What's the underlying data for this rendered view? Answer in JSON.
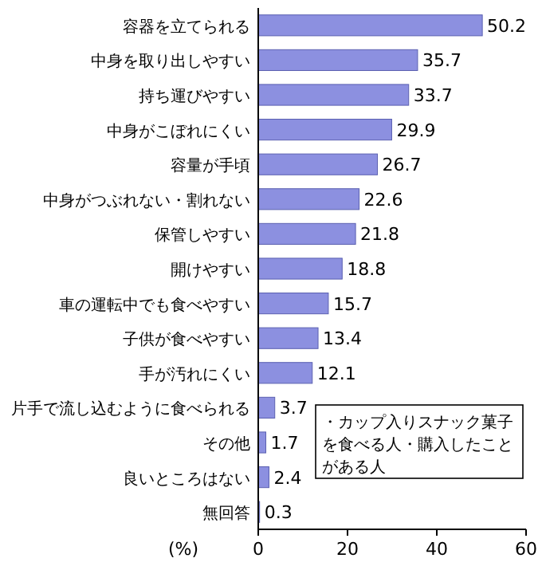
{
  "chart_data": {
    "type": "bar",
    "orientation": "horizontal",
    "categories": [
      "容器を立てられる",
      "中身を取り出しやすい",
      "持ち運びやすい",
      "中身がこぼれにくい",
      "容量が手頃",
      "中身がつぶれない・割れない",
      "保管しやすい",
      "開けやすい",
      "車の運転中でも食べやすい",
      "子供が食べやすい",
      "手が汚れにくい",
      "片手で流し込むように食べられる",
      "その他",
      "良いところはない",
      "無回答"
    ],
    "values": [
      50.2,
      35.7,
      33.7,
      29.9,
      26.7,
      22.6,
      21.8,
      18.8,
      15.7,
      13.4,
      12.1,
      3.7,
      1.7,
      2.4,
      0.3
    ],
    "color": "#8c90e0",
    "data_labels": true,
    "xlabel": "(%)",
    "xlim": [
      0,
      60
    ],
    "xticks": [
      0,
      20,
      40,
      60
    ],
    "annotations": [
      "・カップ入りスナック菓子を食べる人・購入したことがある人"
    ]
  }
}
